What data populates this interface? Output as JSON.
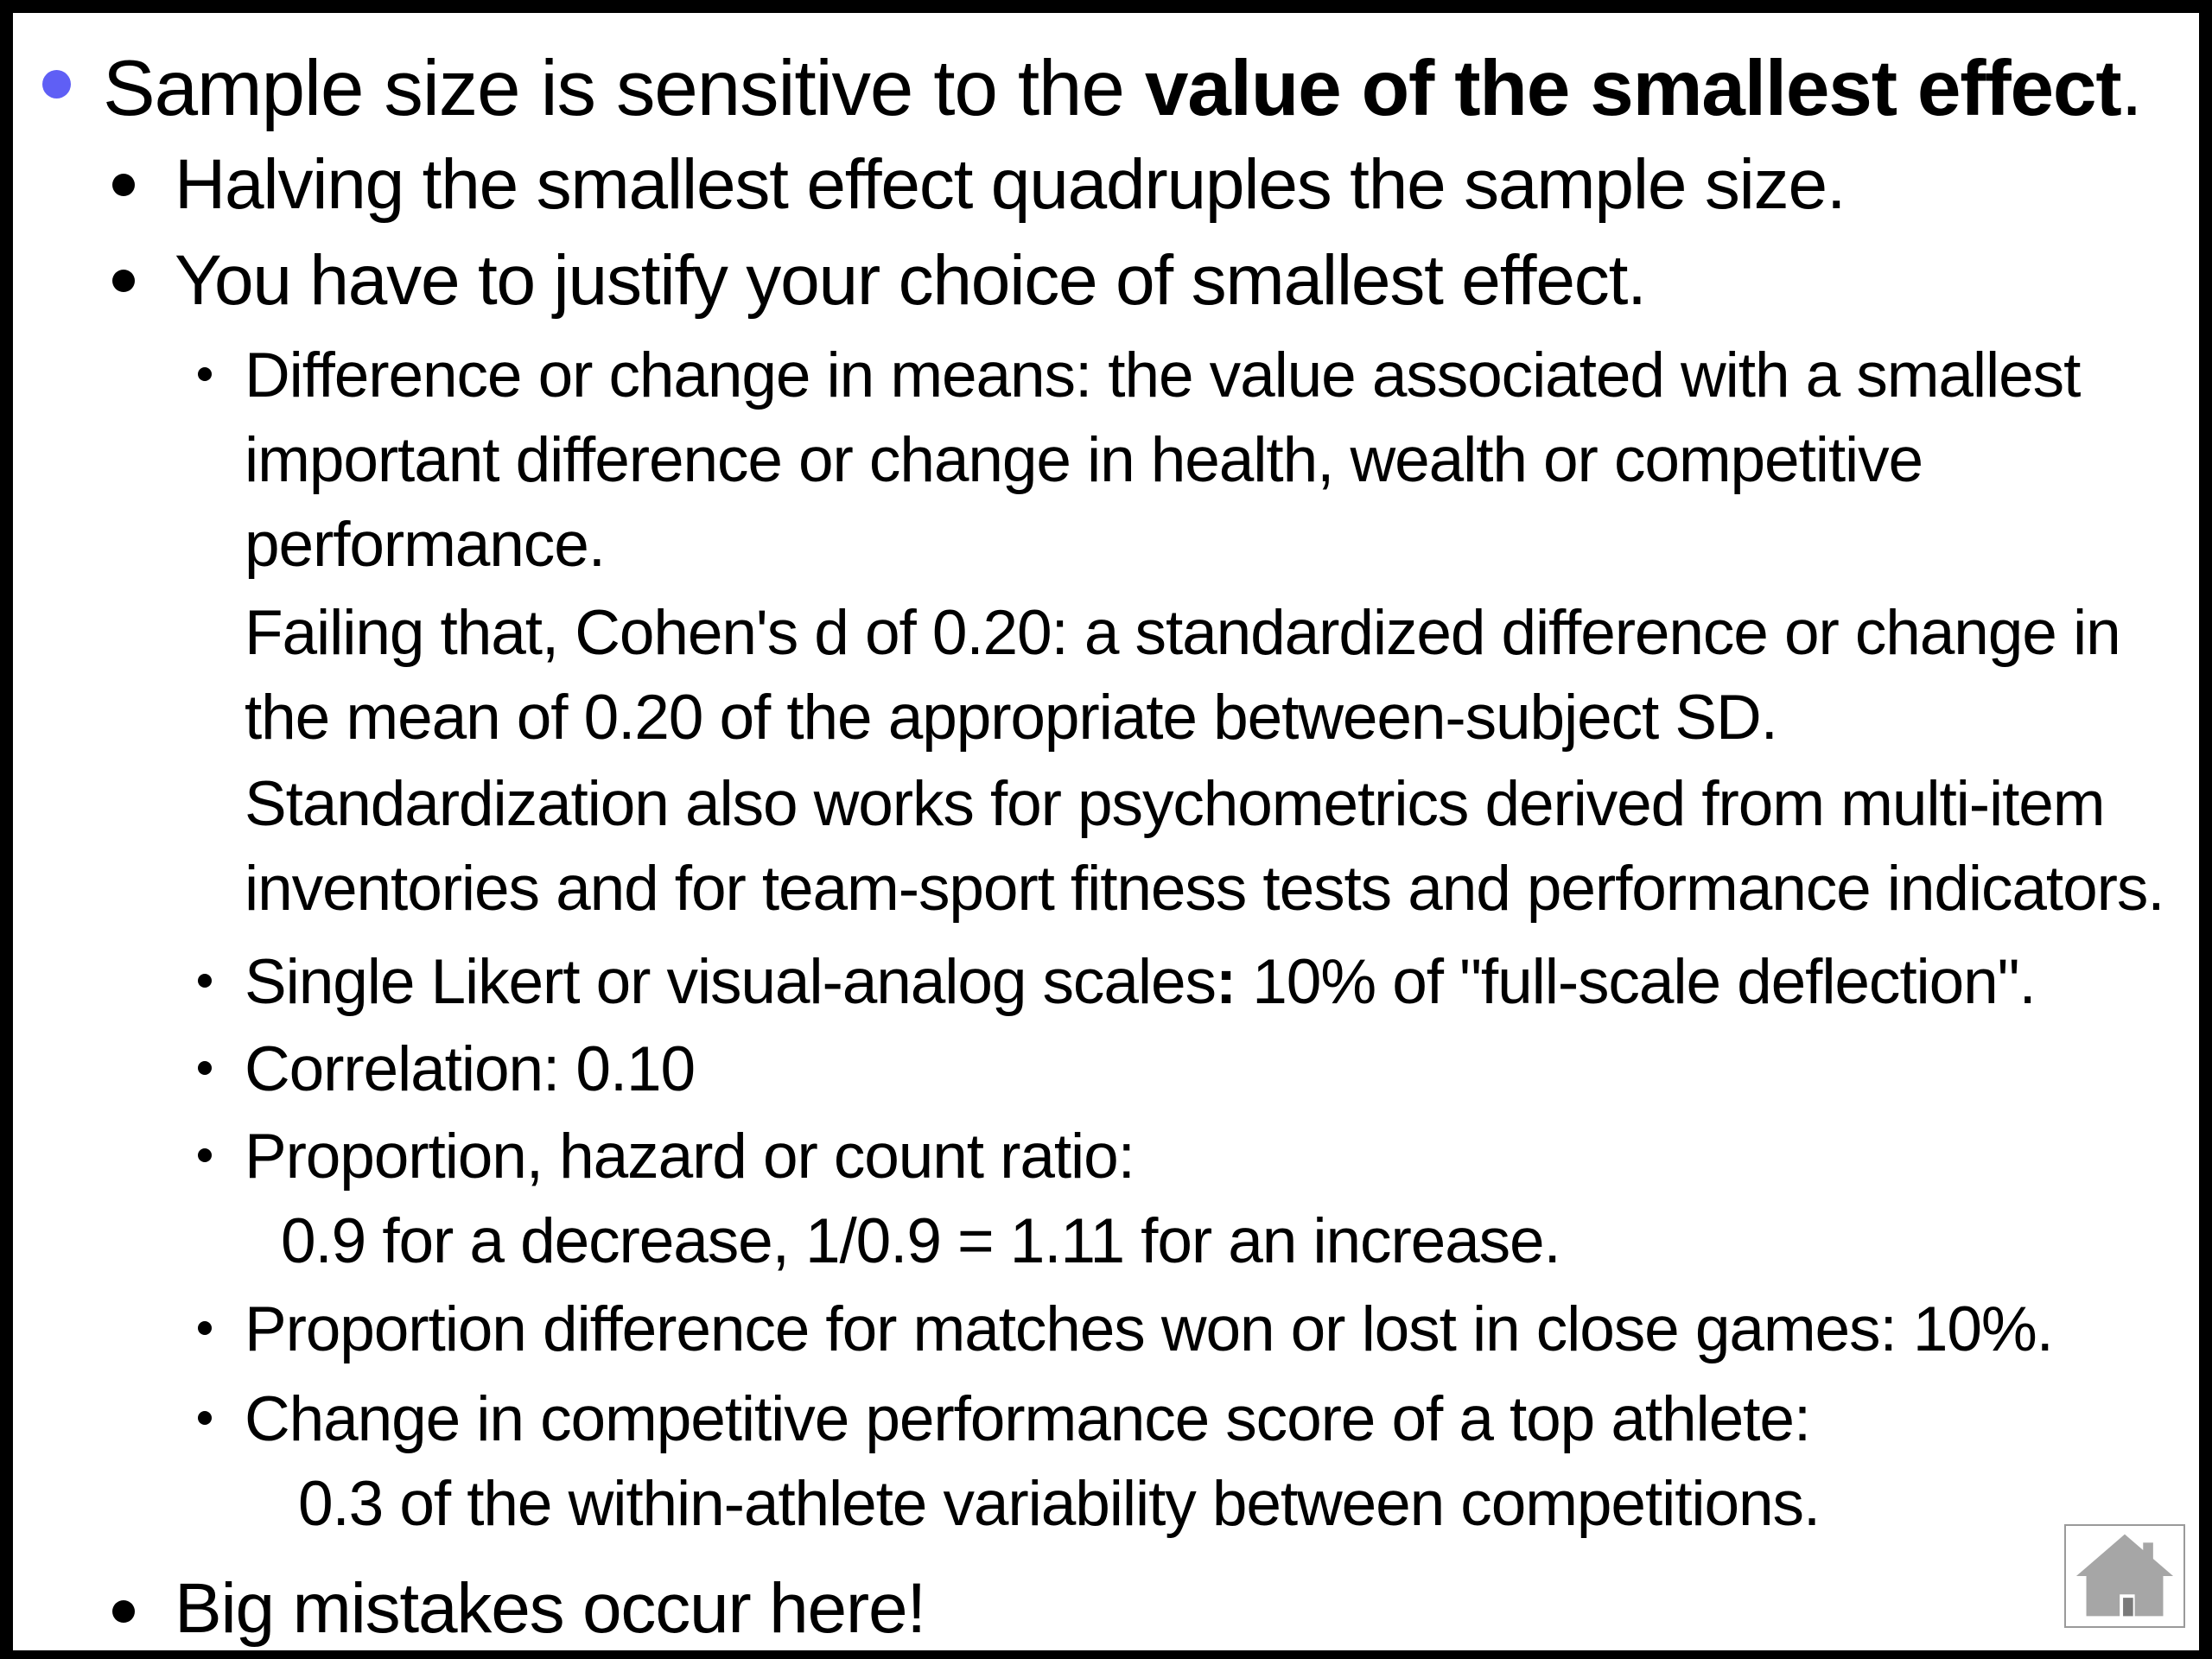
{
  "slide": {
    "level1": {
      "text_before": "Sample size is sensitive to the ",
      "text_bold": "value of the smallest effect",
      "text_after": "."
    },
    "level2_a": "Halving the smallest effect quadruples the sample size.",
    "level2_b": "You have to justify your choice of smallest effect.",
    "diff_means": {
      "line1": "Difference or change in means: the value associated with a smallest",
      "line2": "important difference or change in health, wealth or competitive",
      "line3": "performance.",
      "line4": "Failing that, Cohen's d of 0.20: a standardized difference or change in",
      "line5": "the mean of 0.20 of the appropriate between-subject SD.",
      "line6": "Standardization also works for psychometrics derived from multi-item",
      "line7": "inventories and for team-sport fitness tests and performance indicators."
    },
    "likert": {
      "before": "Single Likert or visual-analog scales",
      "colon": ":",
      "after": " 10% of \"full-scale deflection\"."
    },
    "correlation": "Correlation: 0.10",
    "ratio": {
      "line1": "Proportion, hazard or count ratio:",
      "line2": "0.9 for a decrease, 1/0.9 = 1.11 for an increase."
    },
    "proportion_difference": "Proportion difference for matches won or lost in close games: 10%.",
    "competitive": {
      "line1": "Change in competitive performance score of a top athlete:",
      "line2": "0.3 of the within-athlete variability between competitions."
    },
    "level2_c": "Big mistakes occur here!"
  },
  "icons": {
    "home": "home-icon"
  },
  "colors": {
    "frame": "#000000",
    "background": "#ffffff",
    "level1_bullet": "#5f5ff5",
    "home_icon": "#a6a6a6"
  }
}
